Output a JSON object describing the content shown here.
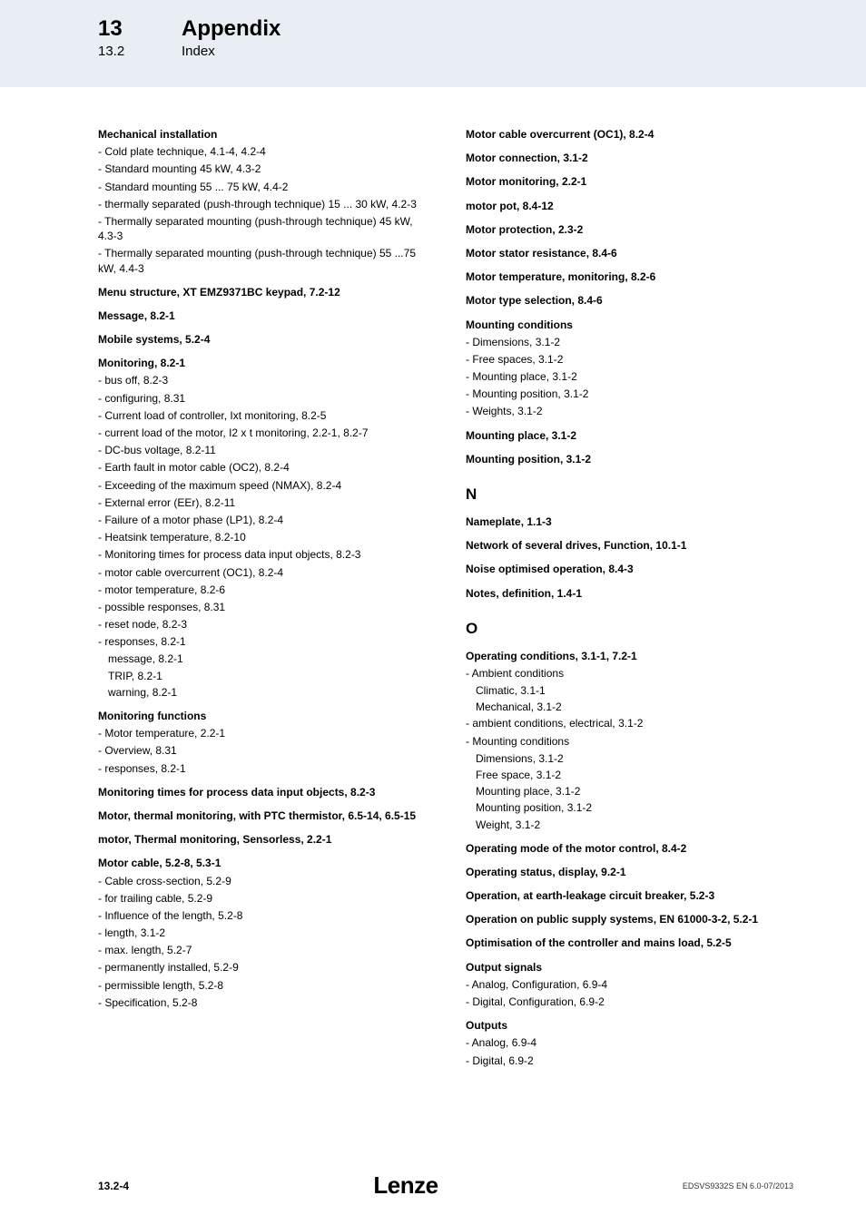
{
  "header": {
    "chapter_num": "13",
    "chapter_title": "Appendix",
    "section_num": "13.2",
    "section_title": "Index"
  },
  "left_col": [
    {
      "t": "h",
      "v": "Mechanical installation"
    },
    {
      "t": "s",
      "v": "Cold plate technique,  4.1-4,  4.2-4"
    },
    {
      "t": "s",
      "v": "Standard mounting 45 kW,  4.3-2"
    },
    {
      "t": "s",
      "v": "Standard mounting 55 ... 75 kW,  4.4-2"
    },
    {
      "t": "s",
      "v": "thermally separated (push-through technique) 15 ... 30 kW,  4.2-3"
    },
    {
      "t": "s",
      "v": "Thermally separated mounting (push-through technique) 45 kW,  4.3-3"
    },
    {
      "t": "s",
      "v": "Thermally separated mounting (push-through technique) 55 ...75 kW,  4.4-3"
    },
    {
      "t": "h",
      "v": "Menu structure, XT EMZ9371BC keypad,  7.2-12"
    },
    {
      "t": "h",
      "v": "Message,  8.2-1"
    },
    {
      "t": "h",
      "v": "Mobile systems,  5.2-4"
    },
    {
      "t": "h",
      "v": "Monitoring,  8.2-1"
    },
    {
      "t": "s",
      "v": "bus off,  8.2-3"
    },
    {
      "t": "s",
      "v": "configuring,  8.31"
    },
    {
      "t": "s",
      "v": "Current load of controller, Ixt monitoring,  8.2-5"
    },
    {
      "t": "s",
      "v": "current load of the motor, I2 x t monitoring,  2.2-1,  8.2-7"
    },
    {
      "t": "s",
      "v": "DC-bus voltage,  8.2-11"
    },
    {
      "t": "s",
      "v": "Earth fault in motor cable (OC2),  8.2-4"
    },
    {
      "t": "s",
      "v": "Exceeding of the maximum speed (NMAX),  8.2-4"
    },
    {
      "t": "s",
      "v": "External error (EEr),  8.2-11"
    },
    {
      "t": "s",
      "v": "Failure of a motor phase (LP1),  8.2-4"
    },
    {
      "t": "s",
      "v": "Heatsink temperature,  8.2-10"
    },
    {
      "t": "s",
      "v": "Monitoring times for process data input objects,  8.2-3"
    },
    {
      "t": "s",
      "v": "motor cable overcurrent (OC1),  8.2-4"
    },
    {
      "t": "s",
      "v": "motor temperature,  8.2-6"
    },
    {
      "t": "s",
      "v": "possible responses,  8.31"
    },
    {
      "t": "s",
      "v": "reset node,  8.2-3"
    },
    {
      "t": "s",
      "v": "responses,  8.2-1"
    },
    {
      "t": "ss",
      "v": "message,  8.2-1"
    },
    {
      "t": "ss",
      "v": "TRIP,  8.2-1"
    },
    {
      "t": "ss",
      "v": "warning,  8.2-1"
    },
    {
      "t": "h",
      "v": "Monitoring functions"
    },
    {
      "t": "s",
      "v": "Motor temperature,  2.2-1"
    },
    {
      "t": "s",
      "v": "Overview,  8.31"
    },
    {
      "t": "s",
      "v": "responses,  8.2-1"
    },
    {
      "t": "h",
      "v": "Monitoring times for process data input objects,  8.2-3"
    },
    {
      "t": "h",
      "v": "Motor, thermal monitoring, with PTC thermistor,  6.5-14, 6.5-15"
    },
    {
      "t": "h",
      "v": "motor, Thermal monitoring, Sensorless,  2.2-1"
    },
    {
      "t": "h",
      "v": "Motor cable,  5.2-8,  5.3-1"
    },
    {
      "t": "s",
      "v": "Cable cross-section,  5.2-9"
    },
    {
      "t": "s",
      "v": "for trailing cable,  5.2-9"
    },
    {
      "t": "s",
      "v": "Influence of the length,  5.2-8"
    },
    {
      "t": "s",
      "v": "length,  3.1-2"
    },
    {
      "t": "s",
      "v": "max. length,  5.2-7"
    },
    {
      "t": "s",
      "v": "permanently installed,  5.2-9"
    },
    {
      "t": "s",
      "v": "permissible length,  5.2-8"
    },
    {
      "t": "s",
      "v": "Specification,  5.2-8"
    }
  ],
  "right_col": [
    {
      "t": "h",
      "v": "Motor cable overcurrent (OC1),  8.2-4"
    },
    {
      "t": "h",
      "v": "Motor connection,  3.1-2"
    },
    {
      "t": "h",
      "v": "Motor monitoring,  2.2-1"
    },
    {
      "t": "h",
      "v": "motor pot,  8.4-12"
    },
    {
      "t": "h",
      "v": "Motor protection,  2.3-2"
    },
    {
      "t": "h",
      "v": "Motor stator resistance,  8.4-6"
    },
    {
      "t": "h",
      "v": "Motor temperature, monitoring,  8.2-6"
    },
    {
      "t": "h",
      "v": "Motor type selection,  8.4-6"
    },
    {
      "t": "h",
      "v": "Mounting conditions"
    },
    {
      "t": "s",
      "v": "Dimensions,  3.1-2"
    },
    {
      "t": "s",
      "v": "Free spaces,  3.1-2"
    },
    {
      "t": "s",
      "v": "Mounting place,  3.1-2"
    },
    {
      "t": "s",
      "v": "Mounting position,  3.1-2"
    },
    {
      "t": "s",
      "v": "Weights,  3.1-2"
    },
    {
      "t": "h",
      "v": "Mounting place,  3.1-2"
    },
    {
      "t": "h",
      "v": "Mounting position,  3.1-2"
    },
    {
      "t": "L",
      "v": "N"
    },
    {
      "t": "h",
      "v": "Nameplate,  1.1-3"
    },
    {
      "t": "h",
      "v": "Network of several drives, Function,  10.1-1"
    },
    {
      "t": "h",
      "v": "Noise optimised operation,  8.4-3"
    },
    {
      "t": "h",
      "v": "Notes, definition,  1.4-1"
    },
    {
      "t": "L",
      "v": "O"
    },
    {
      "t": "h",
      "v": "Operating conditions,  3.1-1,  7.2-1"
    },
    {
      "t": "s",
      "v": "Ambient conditions"
    },
    {
      "t": "ss",
      "v": "Climatic,  3.1-1"
    },
    {
      "t": "ss",
      "v": "Mechanical,  3.1-2"
    },
    {
      "t": "s",
      "v": "ambient conditions, electrical,  3.1-2"
    },
    {
      "t": "s",
      "v": "Mounting conditions"
    },
    {
      "t": "ss",
      "v": "Dimensions,  3.1-2"
    },
    {
      "t": "ss",
      "v": "Free space,  3.1-2"
    },
    {
      "t": "ss",
      "v": "Mounting place,  3.1-2"
    },
    {
      "t": "ss",
      "v": "Mounting position,  3.1-2"
    },
    {
      "t": "ss",
      "v": "Weight,  3.1-2"
    },
    {
      "t": "h",
      "v": "Operating mode of the motor control,  8.4-2"
    },
    {
      "t": "h",
      "v": "Operating status, display,  9.2-1"
    },
    {
      "t": "h",
      "v": "Operation, at earth-leakage circuit breaker,  5.2-3"
    },
    {
      "t": "h",
      "v": "Operation on public supply systems, EN 61000-3-2,  5.2-1"
    },
    {
      "t": "h",
      "v": "Optimisation of the controller and mains load,  5.2-5"
    },
    {
      "t": "h",
      "v": "Output signals"
    },
    {
      "t": "s",
      "v": "Analog, Configuration,  6.9-4"
    },
    {
      "t": "s",
      "v": "Digital, Configuration,  6.9-2"
    },
    {
      "t": "h",
      "v": "Outputs"
    },
    {
      "t": "s",
      "v": "Analog,  6.9-4"
    },
    {
      "t": "s",
      "v": "Digital,  6.9-2"
    }
  ],
  "footer": {
    "page": "13.2-4",
    "logo": "Lenze",
    "code": "EDSVS9332S EN 6.0-07/2013"
  }
}
